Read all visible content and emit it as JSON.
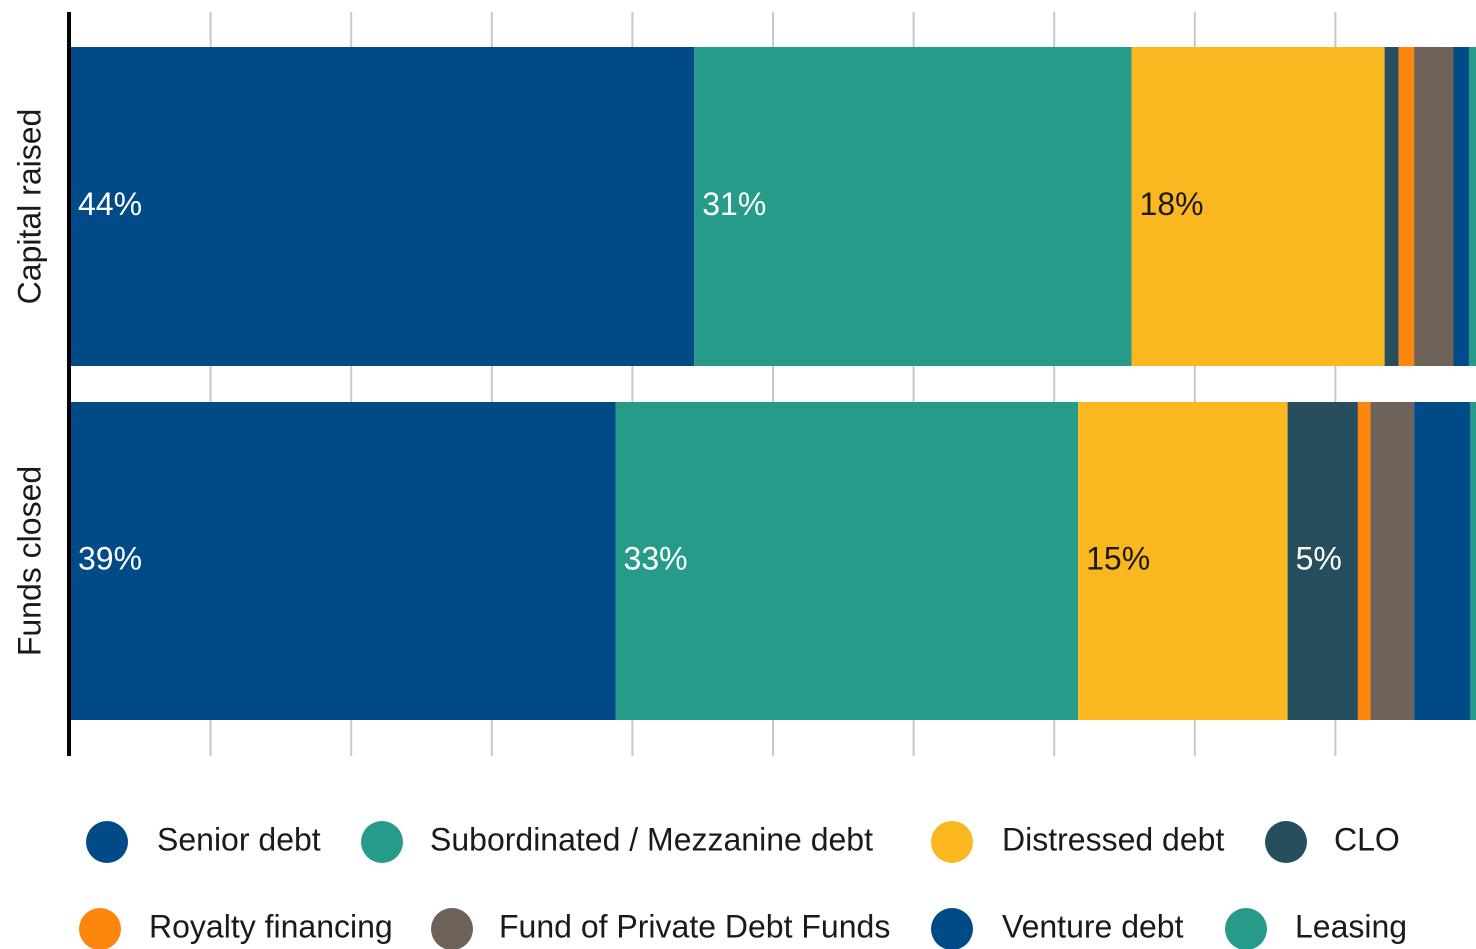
{
  "chart_data": {
    "type": "stacked_barh",
    "categories": [
      "Capital raised",
      "Funds closed"
    ],
    "series": [
      {
        "name": "Senior debt",
        "color": "#004b87",
        "values": [
          44.4,
          38.8
        ],
        "value_labels": [
          "44%",
          "39%"
        ]
      },
      {
        "name": "Subordinated / Mezzanine debt",
        "color": "#279b8a",
        "values": [
          31.1,
          32.9
        ],
        "value_labels": [
          "31%",
          "33%"
        ]
      },
      {
        "name": "Distressed debt",
        "color": "#fbb71f",
        "values": [
          18,
          14.9
        ],
        "value_labels": [
          "18%",
          "15%"
        ]
      },
      {
        "name": "CLO",
        "color": "#264e5c",
        "values": [
          1,
          5
        ],
        "value_labels": [
          null,
          "5%"
        ]
      },
      {
        "name": "Royalty financing",
        "color": "#fd860e",
        "values": [
          1.1,
          0.9
        ]
      },
      {
        "name": "Fund of Private Debt Funds",
        "color": "#6e6259",
        "values": [
          2.8,
          3.1
        ]
      },
      {
        "name": "Venture debt",
        "color": "#004b87",
        "values": [
          1.1,
          4
        ]
      },
      {
        "name": "Leasing",
        "color": "#279b8a",
        "values": [
          0.5,
          0.4
        ]
      }
    ],
    "xlim": [
      0,
      100
    ],
    "xticks": [
      10,
      20,
      30,
      40,
      50,
      60,
      70,
      80,
      90
    ],
    "grid": true
  }
}
